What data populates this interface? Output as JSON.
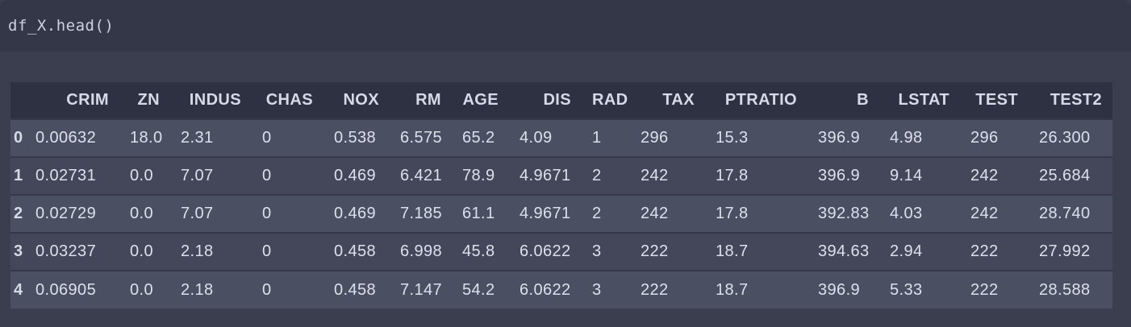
{
  "code_cell": {
    "code": "df_X.head()"
  },
  "table": {
    "index_header": "",
    "columns": [
      "CRIM",
      "ZN",
      "INDUS",
      "CHAS",
      "NOX",
      "RM",
      "AGE",
      "DIS",
      "RAD",
      "TAX",
      "PTRATIO",
      "B",
      "LSTAT",
      "TEST",
      "TEST2"
    ],
    "rows": [
      {
        "index": "0",
        "cells": [
          "0.00632",
          "18.0",
          "2.31",
          "0",
          "0.538",
          "6.575",
          "65.2",
          "4.09",
          "1",
          "296",
          "15.3",
          "396.9",
          "4.98",
          "296",
          "26.300"
        ]
      },
      {
        "index": "1",
        "cells": [
          "0.02731",
          "0.0",
          "7.07",
          "0",
          "0.469",
          "6.421",
          "78.9",
          "4.9671",
          "2",
          "242",
          "17.8",
          "396.9",
          "9.14",
          "242",
          "25.684"
        ]
      },
      {
        "index": "2",
        "cells": [
          "0.02729",
          "0.0",
          "7.07",
          "0",
          "0.469",
          "7.185",
          "61.1",
          "4.9671",
          "2",
          "242",
          "17.8",
          "392.83",
          "4.03",
          "242",
          "28.740"
        ]
      },
      {
        "index": "3",
        "cells": [
          "0.03237",
          "0.0",
          "2.18",
          "0",
          "0.458",
          "6.998",
          "45.8",
          "6.0622",
          "3",
          "222",
          "18.7",
          "394.63",
          "2.94",
          "222",
          "27.992"
        ]
      },
      {
        "index": "4",
        "cells": [
          "0.06905",
          "0.0",
          "2.18",
          "0",
          "0.458",
          "7.147",
          "54.2",
          "6.0622",
          "3",
          "222",
          "18.7",
          "396.9",
          "5.33",
          "222",
          "28.588"
        ]
      }
    ]
  },
  "colors": {
    "page_bg": "#3a3e4f",
    "code_bg": "#333748",
    "code_text": "#ccd1df",
    "header_bg": "#2d3142",
    "header_text": "#d6dae6",
    "row_even_bg": "#4b4f62",
    "row_odd_bg": "#434759",
    "cell_text": "#dce0eb",
    "separator": "#34384a"
  }
}
